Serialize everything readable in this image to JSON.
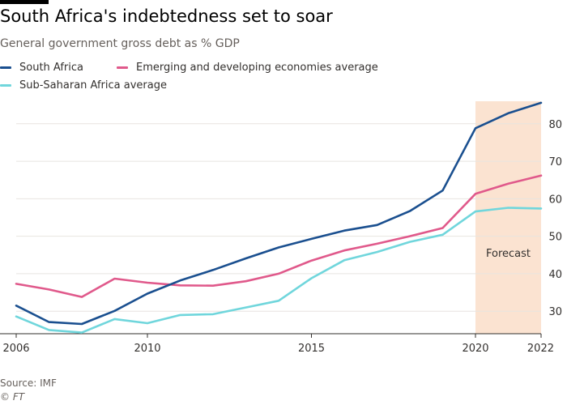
{
  "title": "South Africa's indebtedness set to soar",
  "subtitle": "General government gross debt as % GDP",
  "source": "Source: IMF",
  "copyright": "© FT",
  "colors": {
    "south_africa": "#1a4f8f",
    "emerging": "#e0598b",
    "sub_saharan": "#70d6dc",
    "forecast_band": "#fbe3d1",
    "grid": "#e8e4e0",
    "axis": "#66605c",
    "text": "#33302e"
  },
  "chart_data": {
    "type": "line",
    "x": [
      2006,
      2007,
      2008,
      2009,
      2010,
      2011,
      2012,
      2013,
      2014,
      2015,
      2016,
      2017,
      2018,
      2019,
      2020,
      2021,
      2022
    ],
    "series": [
      {
        "key": "south_africa",
        "name": "South Africa",
        "values": [
          31.5,
          27.1,
          26.6,
          30.1,
          34.7,
          38.2,
          41.0,
          44.1,
          47.0,
          49.3,
          51.5,
          53.0,
          56.7,
          62.2,
          78.8,
          82.8,
          85.6
        ]
      },
      {
        "key": "emerging",
        "name": "Emerging and developing economies average",
        "values": [
          37.3,
          35.8,
          33.8,
          38.7,
          37.6,
          36.9,
          36.8,
          38.0,
          40.0,
          43.5,
          46.2,
          48.0,
          50.0,
          52.2,
          61.3,
          64.0,
          66.2
        ]
      },
      {
        "key": "sub_saharan",
        "name": "Sub-Saharan Africa average",
        "values": [
          28.6,
          25.0,
          24.3,
          27.9,
          26.8,
          29.0,
          29.2,
          31.0,
          32.8,
          38.8,
          43.6,
          45.8,
          48.5,
          50.4,
          56.6,
          57.6,
          57.4
        ]
      }
    ],
    "xlim": [
      2006,
      2022
    ],
    "ylim": [
      24,
      86
    ],
    "xticks": [
      2006,
      2010,
      2015,
      2020,
      2022
    ],
    "yticks": [
      30,
      40,
      50,
      60,
      70,
      80
    ],
    "forecast_range": [
      2020,
      2022
    ],
    "forecast_label": "Forecast",
    "grid": "horizontal",
    "legend_position": "top-left",
    "y_axis_side": "right"
  }
}
